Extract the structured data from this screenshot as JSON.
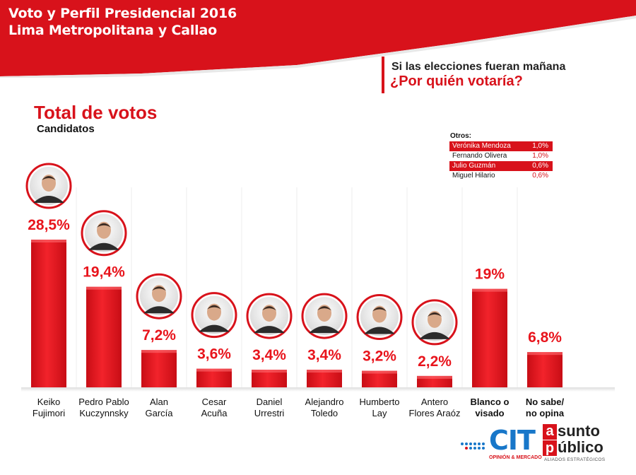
{
  "header": {
    "title_line1": "Voto y Perfil Presidencial 2016",
    "title_line2": "Lima Metropolitana y Callao"
  },
  "question": {
    "line1": "Si las elecciones fueran mañana",
    "line2": "¿Por quién votaría?"
  },
  "section": {
    "title": "Total de votos",
    "subtitle": "Candidatos"
  },
  "others": {
    "title": "Otros:",
    "items": [
      {
        "name": "Verónika Mendoza",
        "value": "1,0%",
        "highlight": true
      },
      {
        "name": "Fernando Olivera",
        "value": "1,0%",
        "highlight": false
      },
      {
        "name": "Julio Guzmán",
        "value": "0,6%",
        "highlight": true
      },
      {
        "name": "Miguel Hilario",
        "value": "0,6%",
        "highlight": false
      }
    ]
  },
  "chart_data": {
    "type": "bar",
    "title": "Total de votos",
    "categories": [
      [
        "Keiko",
        "Fujimori"
      ],
      [
        "Pedro Pablo",
        "Kuczynnsky"
      ],
      [
        "Alan",
        "García"
      ],
      [
        "Cesar",
        "Acuña"
      ],
      [
        "Daniel",
        "Urrestri"
      ],
      [
        "Alejandro",
        "Toledo"
      ],
      [
        "Humberto",
        "Lay"
      ],
      [
        "Antero",
        "Flores Araóz"
      ],
      [
        "Blanco o",
        "visado"
      ],
      [
        "No sabe/",
        "no opina"
      ]
    ],
    "values": [
      28.5,
      19.4,
      7.2,
      3.6,
      3.4,
      3.4,
      3.2,
      2.2,
      19.0,
      6.8
    ],
    "value_labels": [
      "28,5%",
      "19,4%",
      "7,2%",
      "3,6%",
      "3,4%",
      "3,4%",
      "3,2%",
      "2,2%",
      "19%",
      "6,8%"
    ],
    "has_photo": [
      true,
      true,
      true,
      true,
      true,
      true,
      true,
      true,
      false,
      false
    ],
    "bold_category": [
      false,
      false,
      false,
      false,
      false,
      false,
      false,
      false,
      true,
      true
    ],
    "bar_color": "#e8141c",
    "ylim": [
      0,
      30
    ],
    "grid": false,
    "legend": "none"
  },
  "logos": {
    "cit": "CIT",
    "cit_sub": "OPINIÓN & MERCADO",
    "ap_a": "a",
    "ap_l1": "sunto",
    "ap_p": "p",
    "ap_l2": "úblico",
    "ap_sub": "ALIADOS ESTRATÉGICOS"
  },
  "colors": {
    "brand_red": "#d8121b",
    "cit_blue": "#1877c9"
  }
}
